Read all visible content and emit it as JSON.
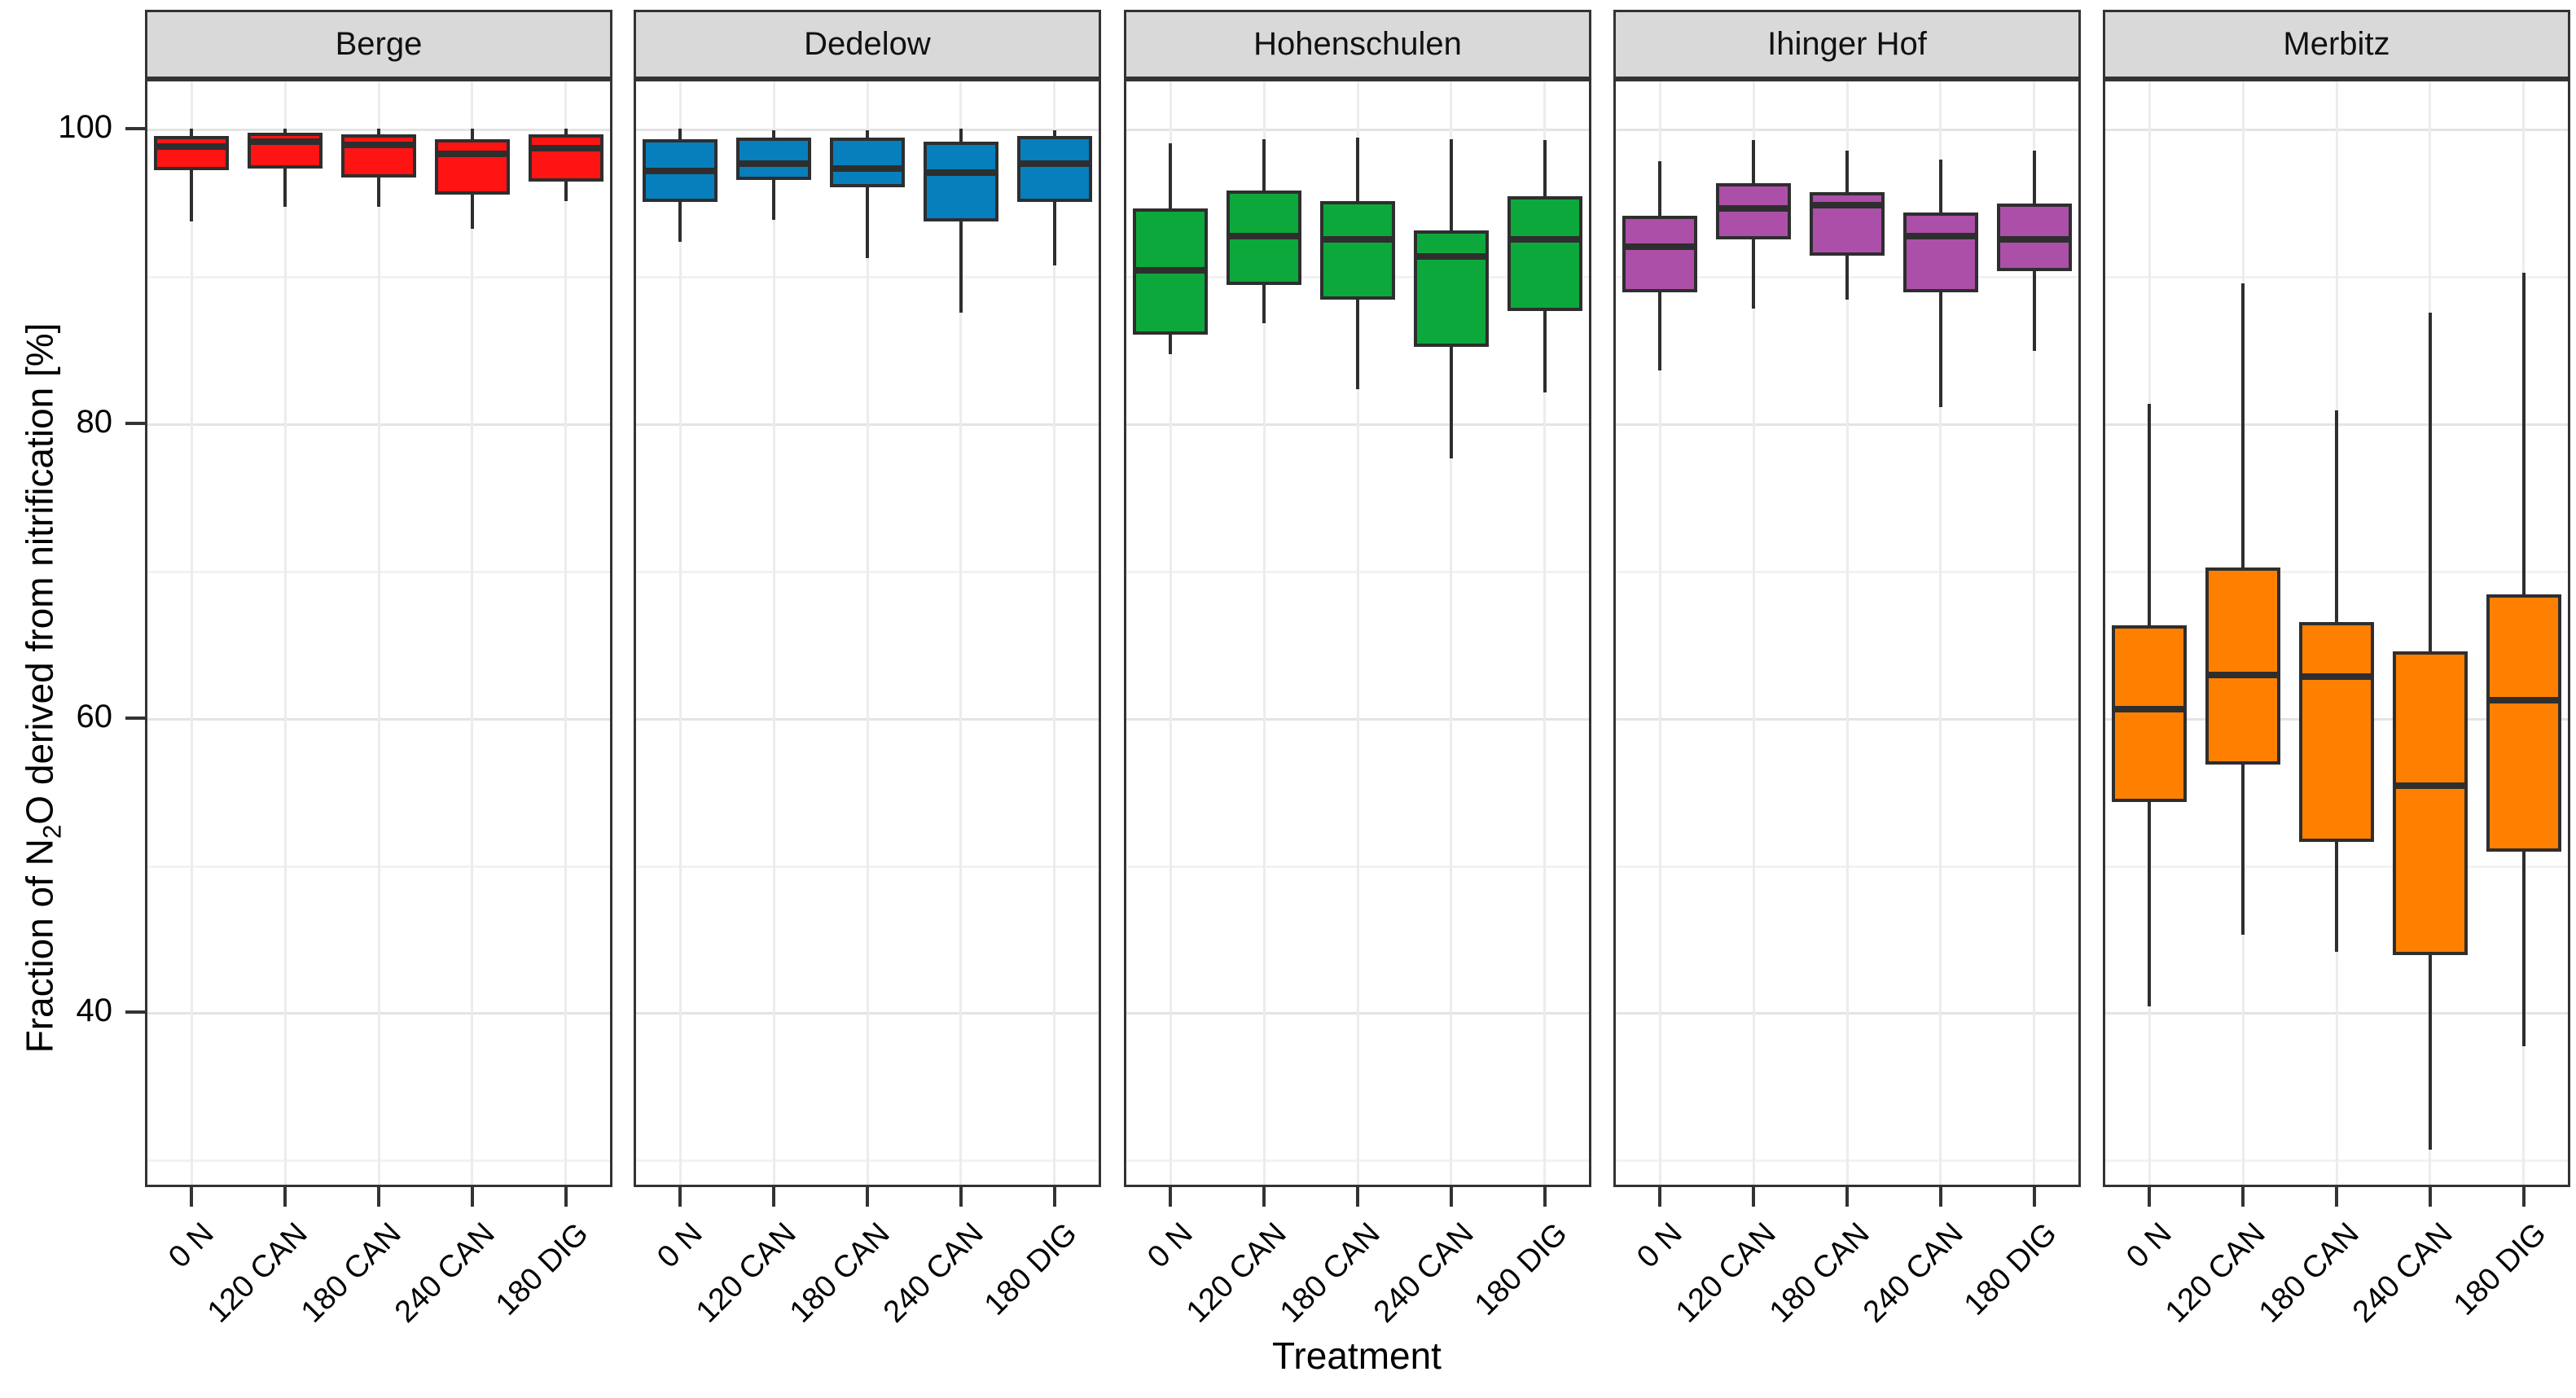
{
  "chart_data": {
    "type": "boxplot",
    "title": "",
    "xlabel": "Treatment",
    "ylabel_text": "Fraction of N2O derived from nitrification [%]",
    "ylabel_parts": {
      "pre": "Fraction of N",
      "sub": "2",
      "post": "O derived from nitrification [%]"
    },
    "categories": [
      "0 N",
      "120 CAN",
      "180 CAN",
      "240 CAN",
      "180 DIG"
    ],
    "y_ticks": [
      100,
      80,
      60,
      40
    ],
    "ylim": [
      28.2,
      103.4
    ],
    "grid": {
      "major": [
        100,
        80,
        60,
        40
      ],
      "minor": [
        90,
        70,
        50,
        30
      ],
      "vertical": "one per treatment"
    },
    "legend_position": "none",
    "facets": [
      {
        "name": "Berge",
        "color": "#FF1414",
        "boxes": [
          {
            "treatment": "0 N",
            "whisker_low": 93.7,
            "q1": 97.2,
            "median": 98.8,
            "q3": 99.5,
            "whisker_high": 100.0
          },
          {
            "treatment": "120 CAN",
            "whisker_low": 94.7,
            "q1": 97.3,
            "median": 99.1,
            "q3": 99.7,
            "whisker_high": 100.0
          },
          {
            "treatment": "180 CAN",
            "whisker_low": 94.7,
            "q1": 96.7,
            "median": 98.9,
            "q3": 99.6,
            "whisker_high": 100.0
          },
          {
            "treatment": "240 CAN",
            "whisker_low": 93.2,
            "q1": 95.5,
            "median": 98.3,
            "q3": 99.3,
            "whisker_high": 100.0
          },
          {
            "treatment": "180 DIG",
            "whisker_low": 95.1,
            "q1": 96.4,
            "median": 98.7,
            "q3": 99.6,
            "whisker_high": 100.0
          }
        ]
      },
      {
        "name": "Dedelow",
        "color": "#077FBC",
        "boxes": [
          {
            "treatment": "0 N",
            "whisker_low": 92.3,
            "q1": 95.0,
            "median": 97.1,
            "q3": 99.3,
            "whisker_high": 100.0
          },
          {
            "treatment": "120 CAN",
            "whisker_low": 93.8,
            "q1": 96.5,
            "median": 97.6,
            "q3": 99.4,
            "whisker_high": 99.9
          },
          {
            "treatment": "180 CAN",
            "whisker_low": 91.2,
            "q1": 96.0,
            "median": 97.3,
            "q3": 99.4,
            "whisker_high": 99.9
          },
          {
            "treatment": "240 CAN",
            "whisker_low": 87.5,
            "q1": 93.7,
            "median": 97.0,
            "q3": 99.1,
            "whisker_high": 100.0
          },
          {
            "treatment": "180 DIG",
            "whisker_low": 90.7,
            "q1": 95.0,
            "median": 97.6,
            "q3": 99.5,
            "whisker_high": 99.9
          }
        ]
      },
      {
        "name": "Hohenschulen",
        "color": "#0CA83C",
        "boxes": [
          {
            "treatment": "0 N",
            "whisker_low": 84.7,
            "q1": 86.0,
            "median": 90.4,
            "q3": 94.6,
            "whisker_high": 99.0
          },
          {
            "treatment": "120 CAN",
            "whisker_low": 86.8,
            "q1": 89.4,
            "median": 92.7,
            "q3": 95.8,
            "whisker_high": 99.3
          },
          {
            "treatment": "180 CAN",
            "whisker_low": 82.3,
            "q1": 88.4,
            "median": 92.5,
            "q3": 95.1,
            "whisker_high": 99.4
          },
          {
            "treatment": "240 CAN",
            "whisker_low": 77.6,
            "q1": 85.2,
            "median": 91.3,
            "q3": 93.1,
            "whisker_high": 99.3
          },
          {
            "treatment": "180 DIG",
            "whisker_low": 82.1,
            "q1": 87.6,
            "median": 92.5,
            "q3": 95.4,
            "whisker_high": 99.2
          }
        ]
      },
      {
        "name": "Ihinger Hof",
        "color": "#AC4FA8",
        "boxes": [
          {
            "treatment": "0 N",
            "whisker_low": 83.6,
            "q1": 88.9,
            "median": 92.0,
            "q3": 94.1,
            "whisker_high": 97.8
          },
          {
            "treatment": "120 CAN",
            "whisker_low": 87.8,
            "q1": 92.5,
            "median": 94.6,
            "q3": 96.3,
            "whisker_high": 99.2
          },
          {
            "treatment": "180 CAN",
            "whisker_low": 88.4,
            "q1": 91.4,
            "median": 94.8,
            "q3": 95.7,
            "whisker_high": 98.5
          },
          {
            "treatment": "240 CAN",
            "whisker_low": 81.1,
            "q1": 88.9,
            "median": 92.7,
            "q3": 94.3,
            "whisker_high": 97.9
          },
          {
            "treatment": "180 DIG",
            "whisker_low": 84.9,
            "q1": 90.3,
            "median": 92.5,
            "q3": 94.9,
            "whisker_high": 98.5
          }
        ]
      },
      {
        "name": "Merbitz",
        "color": "#FF8000",
        "boxes": [
          {
            "treatment": "0 N",
            "whisker_low": 40.4,
            "q1": 54.3,
            "median": 60.6,
            "q3": 66.3,
            "whisker_high": 81.3
          },
          {
            "treatment": "120 CAN",
            "whisker_low": 45.3,
            "q1": 56.8,
            "median": 62.9,
            "q3": 70.2,
            "whisker_high": 89.5
          },
          {
            "treatment": "180 CAN",
            "whisker_low": 44.1,
            "q1": 51.6,
            "median": 62.8,
            "q3": 66.5,
            "whisker_high": 80.9
          },
          {
            "treatment": "240 CAN",
            "whisker_low": 30.7,
            "q1": 43.9,
            "median": 55.4,
            "q3": 64.5,
            "whisker_high": 87.5
          },
          {
            "treatment": "180 DIG",
            "whisker_low": 37.7,
            "q1": 50.9,
            "median": 61.2,
            "q3": 68.4,
            "whisker_high": 90.2
          }
        ]
      }
    ]
  },
  "style": {
    "strip_bg": "#D9D9D9",
    "box_border": "#2E2E2E",
    "panel_border": "#333333",
    "grid_major": "#E4E4E4",
    "grid_minor": "#F2F2F2",
    "grid_vertical": "#ECECEC",
    "tick_color": "#333333",
    "text_color": "#000000",
    "background": "#FFFFFF"
  }
}
